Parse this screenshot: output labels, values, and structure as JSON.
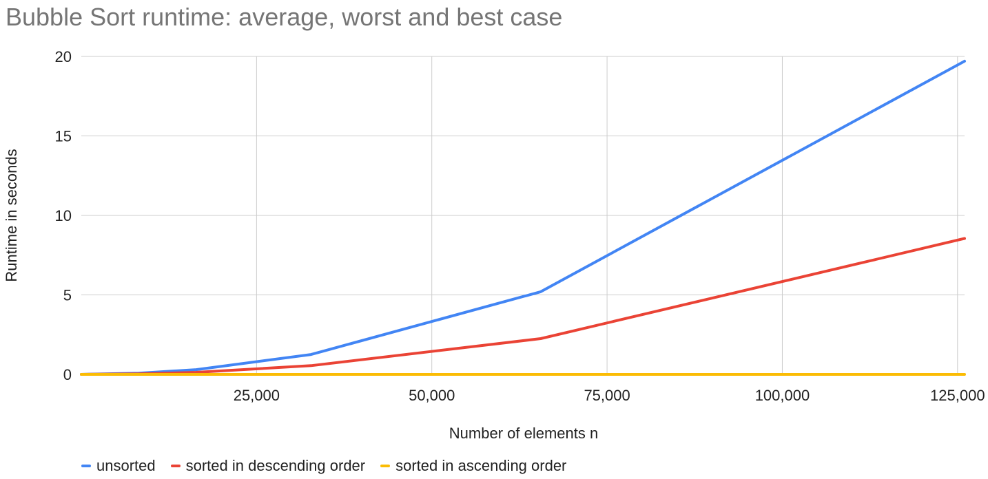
{
  "chart_data": {
    "type": "line",
    "title": "Bubble Sort runtime: average, worst and best case",
    "xlabel": "Number of elements n",
    "ylabel": "Runtime in seconds",
    "xlim": [
      0,
      126000
    ],
    "ylim": [
      0,
      20
    ],
    "x_ticks": [
      25000,
      50000,
      75000,
      100000,
      125000
    ],
    "x_tick_labels": [
      "25,000",
      "50,000",
      "75,000",
      "100,000",
      "125,000"
    ],
    "y_ticks": [
      0,
      5,
      10,
      15,
      20
    ],
    "y_tick_labels": [
      "0",
      "5",
      "10",
      "15",
      "20"
    ],
    "grid": true,
    "legend_position": "bottom-left",
    "series": [
      {
        "name": "unsorted",
        "color": "#4285f4",
        "x": [
          0,
          8192,
          16384,
          32768,
          65536,
          126000
        ],
        "y": [
          0,
          0.08,
          0.3,
          1.25,
          5.2,
          19.7
        ]
      },
      {
        "name": "sorted in descending order",
        "color": "#ea4335",
        "x": [
          0,
          8192,
          16384,
          32768,
          65536,
          126000
        ],
        "y": [
          0,
          0.03,
          0.13,
          0.55,
          2.25,
          8.55
        ]
      },
      {
        "name": "sorted in ascending order",
        "color": "#fbbc04",
        "x": [
          0,
          8192,
          16384,
          32768,
          65536,
          126000
        ],
        "y": [
          0,
          0,
          0,
          0,
          0,
          0
        ]
      }
    ]
  }
}
